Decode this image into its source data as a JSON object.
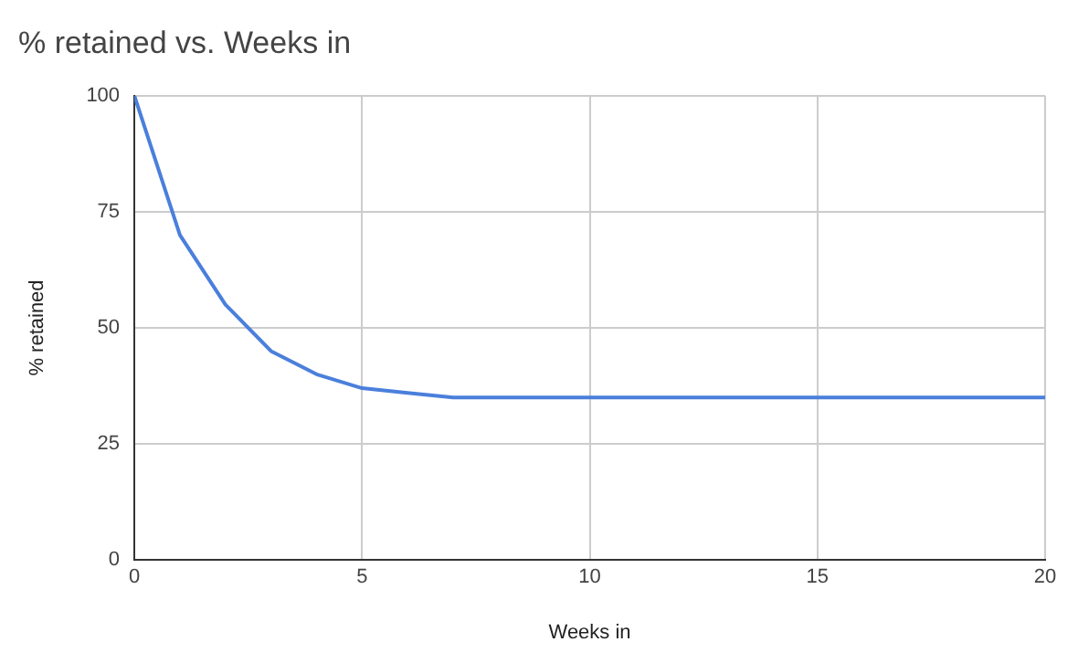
{
  "chart_data": {
    "type": "line",
    "title": "% retained vs. Weeks in",
    "xlabel": "Weeks in",
    "ylabel": "% retained",
    "x": [
      0,
      1,
      2,
      3,
      4,
      5,
      6,
      7,
      10,
      15,
      20
    ],
    "series": [
      {
        "color": "#4a7fdc",
        "values": [
          100,
          70,
          55,
          45,
          40,
          37,
          36,
          35,
          35,
          35,
          35
        ]
      }
    ],
    "xlim": [
      0,
      20
    ],
    "xticks": [
      0,
      5,
      10,
      15,
      20
    ],
    "ylim": [
      0,
      100
    ],
    "yticks": [
      0,
      25,
      50,
      75,
      100
    ],
    "grid": true,
    "legend": false,
    "marker": "none",
    "line_style": "solid"
  }
}
